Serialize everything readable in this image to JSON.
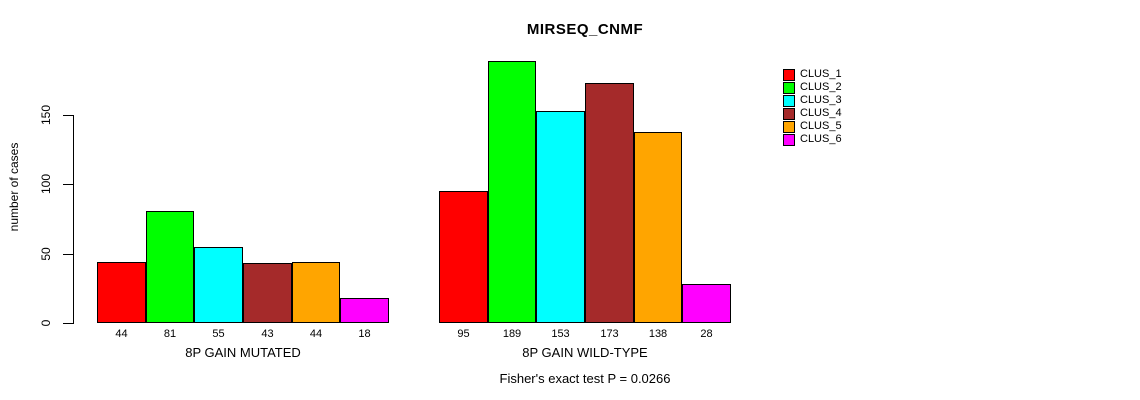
{
  "chart_data": {
    "type": "bar",
    "title": "MIRSEQ_CNMF",
    "ylabel": "number of cases",
    "xlabel": "",
    "yticks": [
      0,
      50,
      100,
      150
    ],
    "ylim": [
      0,
      195
    ],
    "grid": false,
    "legend_position": "right",
    "categories": [
      "8P GAIN MUTATED",
      "8P GAIN WILD-TYPE"
    ],
    "series": [
      {
        "name": "CLUS_1",
        "color": "#ff0000",
        "values": [
          44,
          95
        ]
      },
      {
        "name": "CLUS_2",
        "color": "#00ff00",
        "values": [
          81,
          189
        ]
      },
      {
        "name": "CLUS_3",
        "color": "#00ffff",
        "values": [
          55,
          153
        ]
      },
      {
        "name": "CLUS_4",
        "color": "#a52a2a",
        "values": [
          43,
          173
        ]
      },
      {
        "name": "CLUS_5",
        "color": "#ffa500",
        "values": [
          44,
          138
        ]
      },
      {
        "name": "CLUS_6",
        "color": "#ff00ff",
        "values": [
          18,
          28
        ]
      }
    ],
    "bar_value_labels": true,
    "footer": "Fisher's exact test P = 0.0266"
  }
}
